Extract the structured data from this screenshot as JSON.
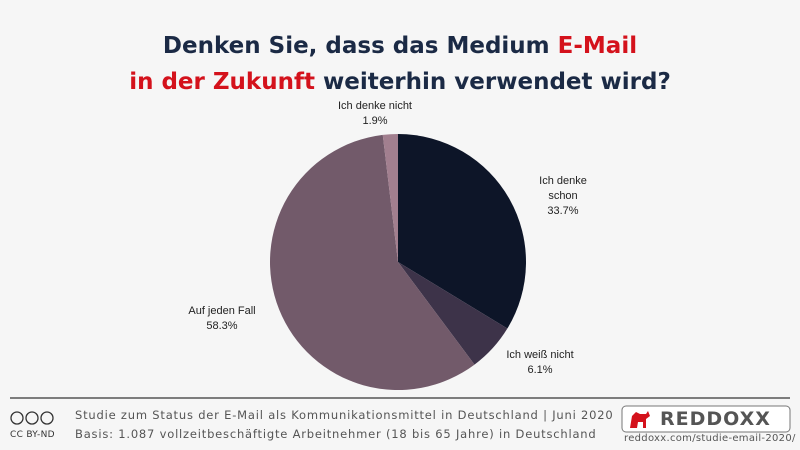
{
  "chart_data": {
    "type": "pie",
    "title": [
      [
        {
          "text": "Denken Sie, dass das Medium",
          "color": "#1b2a45"
        },
        {
          "text": "E-Mail",
          "color": "#d4121c"
        }
      ],
      [
        {
          "text": "in der Zukunft",
          "color": "#d4121c"
        },
        {
          "text": "weiterhin verwendet wird?",
          "color": "#1b2a45"
        }
      ]
    ],
    "categories": [
      "Ich denke schon",
      "Ich weiß nicht",
      "Auf jeden Fall",
      "Ich denke nicht"
    ],
    "values": [
      33.7,
      6.1,
      58.3,
      1.9
    ],
    "value_labels": [
      "33.7%",
      "6.1%",
      "58.3%",
      "1.9%"
    ],
    "colors": [
      "#0d1528",
      "#3d3349",
      "#725a6a",
      "#a27f8f"
    ]
  },
  "footer": {
    "license": "CC BY-ND",
    "source": "Studie zum Status der E-Mail als Kommunikationsmittel in Deutschland | Juni 2020",
    "basis": "Basis: 1.087 vollzeitbeschäftigte Arbeitnehmer (18 bis 65 Jahre) in Deutschland",
    "brand": "REDDOXX",
    "url": "reddoxx.com/studie-email-2020/"
  }
}
